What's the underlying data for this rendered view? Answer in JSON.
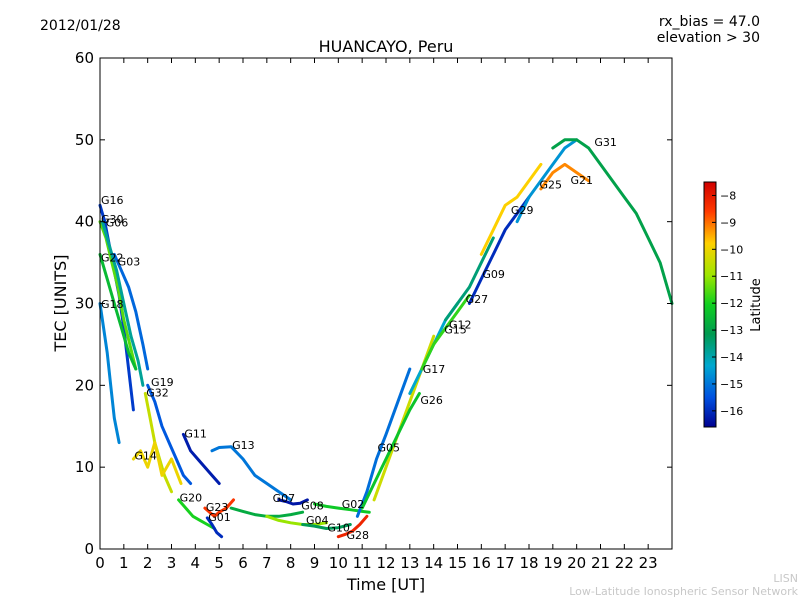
{
  "header": {
    "date": "2012/01/28",
    "rx_bias": "rx_bias = 47.0",
    "elevation": "elevation > 30"
  },
  "footer": {
    "line1": "LISN",
    "line2": "Low-Latitude Ionospheric Sensor Network"
  },
  "chart_data": {
    "type": "scatter",
    "title": "HUANCAYO, Peru",
    "xlabel": "Time [UT]",
    "ylabel": "TEC [UNITS]",
    "xlim": [
      0,
      24
    ],
    "ylim": [
      0,
      60
    ],
    "xticks": [
      0,
      1,
      2,
      3,
      4,
      5,
      6,
      7,
      8,
      9,
      10,
      11,
      12,
      13,
      14,
      15,
      16,
      17,
      18,
      19,
      20,
      21,
      22,
      23
    ],
    "yticks": [
      0,
      10,
      20,
      30,
      40,
      50,
      60
    ],
    "grid": false,
    "colorbar": {
      "label": "Latitude",
      "range": [
        -16.6,
        -7.5
      ],
      "ticks": [
        -8,
        -9,
        -10,
        -11,
        -12,
        -13,
        -14,
        -15,
        -16
      ]
    },
    "satellite_labels": [
      {
        "name": "G16",
        "x": 0.0,
        "y": 42.5
      },
      {
        "name": "G30",
        "x": 0.0,
        "y": 40.2
      },
      {
        "name": "G06",
        "x": 0.2,
        "y": 39.8
      },
      {
        "name": "G22",
        "x": 0.0,
        "y": 35.5
      },
      {
        "name": "G03",
        "x": 0.7,
        "y": 35.0
      },
      {
        "name": "G18",
        "x": 0.0,
        "y": 29.8
      },
      {
        "name": "G19",
        "x": 2.1,
        "y": 20.3
      },
      {
        "name": "G32",
        "x": 1.9,
        "y": 19.0
      },
      {
        "name": "G14",
        "x": 1.4,
        "y": 11.3
      },
      {
        "name": "G11",
        "x": 3.5,
        "y": 14.0
      },
      {
        "name": "G13",
        "x": 5.5,
        "y": 12.6
      },
      {
        "name": "G20",
        "x": 3.3,
        "y": 6.2
      },
      {
        "name": "G23",
        "x": 4.4,
        "y": 5.0
      },
      {
        "name": "G01",
        "x": 4.5,
        "y": 3.8
      },
      {
        "name": "G07",
        "x": 7.2,
        "y": 6.1
      },
      {
        "name": "G08",
        "x": 8.4,
        "y": 5.2
      },
      {
        "name": "G04",
        "x": 8.6,
        "y": 3.4
      },
      {
        "name": "G10",
        "x": 9.5,
        "y": 2.5
      },
      {
        "name": "G02",
        "x": 10.1,
        "y": 5.4
      },
      {
        "name": "G28",
        "x": 10.3,
        "y": 1.6
      },
      {
        "name": "G05",
        "x": 11.6,
        "y": 12.3
      },
      {
        "name": "G17",
        "x": 13.5,
        "y": 21.9
      },
      {
        "name": "G26",
        "x": 13.4,
        "y": 18.1
      },
      {
        "name": "G15",
        "x": 14.4,
        "y": 26.7
      },
      {
        "name": "G12",
        "x": 14.6,
        "y": 27.3
      },
      {
        "name": "G27",
        "x": 15.3,
        "y": 30.4
      },
      {
        "name": "G09",
        "x": 16.0,
        "y": 33.5
      },
      {
        "name": "G29",
        "x": 17.2,
        "y": 41.3
      },
      {
        "name": "G25",
        "x": 18.4,
        "y": 44.4
      },
      {
        "name": "G21",
        "x": 19.7,
        "y": 45.0
      },
      {
        "name": "G31",
        "x": 20.7,
        "y": 49.6
      }
    ],
    "series": [
      {
        "name": "G16",
        "lat": -15.8,
        "x": [
          0,
          0.2,
          0.4,
          0.6,
          0.8,
          1.0,
          1.2,
          1.4
        ],
        "y": [
          42,
          40,
          37,
          34,
          31,
          27,
          22,
          17
        ]
      },
      {
        "name": "G30",
        "lat": -11.5,
        "x": [
          0,
          0.25,
          0.5,
          0.75,
          1.0,
          1.25,
          1.5
        ],
        "y": [
          40,
          38,
          35,
          32,
          28,
          25,
          22
        ]
      },
      {
        "name": "G06",
        "lat": -13.8,
        "x": [
          0.1,
          0.4,
          0.7,
          1.0,
          1.3,
          1.6,
          1.8
        ],
        "y": [
          40,
          37,
          34,
          30,
          26,
          23,
          20
        ]
      },
      {
        "name": "G22",
        "lat": -12.5,
        "x": [
          0,
          0.3,
          0.6,
          0.9,
          1.2,
          1.5
        ],
        "y": [
          36,
          33,
          30,
          27,
          24,
          22
        ]
      },
      {
        "name": "G03",
        "lat": -15.2,
        "x": [
          0.6,
          0.9,
          1.2,
          1.5,
          1.8,
          2.0
        ],
        "y": [
          36,
          34,
          32,
          29,
          25,
          22
        ]
      },
      {
        "name": "G18",
        "lat": -14.8,
        "x": [
          0,
          0.15,
          0.3,
          0.45,
          0.6,
          0.8
        ],
        "y": [
          30,
          27,
          24,
          20,
          16,
          13
        ]
      },
      {
        "name": "G19",
        "lat": -15.4,
        "x": [
          2.0,
          2.3,
          2.6,
          2.9,
          3.2,
          3.5,
          3.8
        ],
        "y": [
          20,
          18,
          15,
          13,
          11,
          9,
          8
        ]
      },
      {
        "name": "G32",
        "lat": -10.5,
        "x": [
          1.9,
          2.1,
          2.3,
          2.5,
          2.7,
          3.0
        ],
        "y": [
          19,
          16,
          13,
          11,
          9,
          7
        ]
      },
      {
        "name": "G14",
        "lat": -10.0,
        "x": [
          1.4,
          1.7,
          2.0,
          2.3,
          2.6,
          3.0,
          3.4
        ],
        "y": [
          11,
          12,
          10,
          13,
          9,
          11,
          8
        ]
      },
      {
        "name": "G11",
        "lat": -16.2,
        "x": [
          3.5,
          3.8,
          4.1,
          4.4,
          4.7,
          5.0
        ],
        "y": [
          14,
          12,
          11,
          10,
          9,
          8
        ]
      },
      {
        "name": "G13",
        "lat": -15.0,
        "x": [
          4.7,
          5.0,
          5.5,
          6.0,
          6.5,
          7.0,
          7.5,
          8.0
        ],
        "y": [
          12,
          12.4,
          12.5,
          11,
          9,
          8,
          7,
          6
        ]
      },
      {
        "name": "G20",
        "lat": -12.0,
        "x": [
          3.3,
          3.6,
          3.9,
          4.2,
          4.5,
          4.8
        ],
        "y": [
          6,
          5,
          4,
          3.5,
          3,
          2.5
        ]
      },
      {
        "name": "G23",
        "lat": -8.5,
        "x": [
          4.4,
          4.6,
          4.8,
          5.0,
          5.3,
          5.6
        ],
        "y": [
          5,
          4.5,
          4,
          4.5,
          5,
          6
        ]
      },
      {
        "name": "G01",
        "lat": -16.0,
        "x": [
          4.5,
          4.7,
          4.9,
          5.1
        ],
        "y": [
          3.8,
          3,
          2,
          1.5
        ]
      },
      {
        "name": "G07",
        "lat": -12.8,
        "x": [
          5.5,
          6.0,
          6.5,
          7.0,
          7.5,
          8.0,
          8.5
        ],
        "y": [
          5,
          4.6,
          4.2,
          4,
          4,
          4.2,
          4.5
        ]
      },
      {
        "name": "G08",
        "lat": -16.3,
        "x": [
          7.5,
          7.8,
          8.1,
          8.4,
          8.7
        ],
        "y": [
          6,
          5.8,
          5.5,
          5.6,
          6
        ]
      },
      {
        "name": "G04",
        "lat": -11.0,
        "x": [
          7.0,
          7.5,
          8.0,
          8.5,
          9.0,
          9.5
        ],
        "y": [
          4,
          3.5,
          3.2,
          3,
          3,
          3.2
        ]
      },
      {
        "name": "G10",
        "lat": -13.2,
        "x": [
          8.5,
          9.0,
          9.5,
          10.0,
          10.5
        ],
        "y": [
          3,
          2.8,
          2.5,
          2.6,
          3
        ]
      },
      {
        "name": "G02",
        "lat": -12.2,
        "x": [
          9.0,
          9.5,
          10.0,
          10.5,
          11.0,
          11.3
        ],
        "y": [
          5.5,
          5.2,
          5,
          4.8,
          4.6,
          4.5
        ]
      },
      {
        "name": "G28",
        "lat": -8.2,
        "x": [
          10.0,
          10.3,
          10.6,
          10.9,
          11.2
        ],
        "y": [
          1.5,
          1.8,
          2.2,
          3,
          4
        ]
      },
      {
        "name": "G05",
        "lat": -15.1,
        "x": [
          10.8,
          11.2,
          11.6,
          12.0,
          12.5,
          13.0
        ],
        "y": [
          4,
          7,
          11,
          14,
          18,
          22
        ]
      },
      {
        "name": "G17",
        "lat": -10.4,
        "x": [
          11.5,
          12.0,
          12.5,
          13.0,
          13.5,
          14.0
        ],
        "y": [
          6,
          10,
          14,
          18,
          22,
          26
        ]
      },
      {
        "name": "G26",
        "lat": -12.3,
        "x": [
          11.0,
          11.5,
          12.0,
          12.5,
          13.0,
          13.4
        ],
        "y": [
          5,
          8,
          11,
          14,
          17,
          19
        ]
      },
      {
        "name": "G15",
        "lat": -14.3,
        "x": [
          13.0,
          13.5,
          14.0,
          14.5,
          15.0
        ],
        "y": [
          19,
          22,
          25,
          28,
          30
        ]
      },
      {
        "name": "G12",
        "lat": -11.8,
        "x": [
          13.5,
          14.0,
          14.5,
          15.0,
          15.5
        ],
        "y": [
          22,
          25,
          27,
          29,
          31
        ]
      },
      {
        "name": "G27",
        "lat": -13.5,
        "x": [
          14.5,
          15.0,
          15.5,
          16.0,
          16.5
        ],
        "y": [
          28,
          30,
          32,
          35,
          38
        ]
      },
      {
        "name": "G09",
        "lat": -16.0,
        "x": [
          15.5,
          16.0,
          16.5,
          17.0,
          17.5,
          18.0
        ],
        "y": [
          30,
          33,
          36,
          39,
          41,
          43
        ]
      },
      {
        "name": "G29",
        "lat": -9.8,
        "x": [
          16.0,
          16.5,
          17.0,
          17.5,
          18.0,
          18.5
        ],
        "y": [
          36,
          39,
          42,
          43,
          45,
          47
        ]
      },
      {
        "name": "G25",
        "lat": -14.6,
        "x": [
          17.5,
          18.0,
          18.5,
          19.0,
          19.5,
          20.0
        ],
        "y": [
          40,
          43,
          45,
          47,
          49,
          50
        ]
      },
      {
        "name": "G21",
        "lat": -9.2,
        "x": [
          18.5,
          19.0,
          19.5,
          20.0,
          20.5
        ],
        "y": [
          44,
          46,
          47,
          46,
          45
        ]
      },
      {
        "name": "G31",
        "lat": -13.0,
        "x": [
          19.0,
          19.5,
          20.0,
          20.5,
          21.0,
          21.5,
          22.0,
          22.5,
          23.0,
          23.5,
          24.0
        ],
        "y": [
          49,
          50,
          50,
          49,
          47,
          45,
          43,
          41,
          38,
          35,
          30
        ]
      }
    ]
  }
}
